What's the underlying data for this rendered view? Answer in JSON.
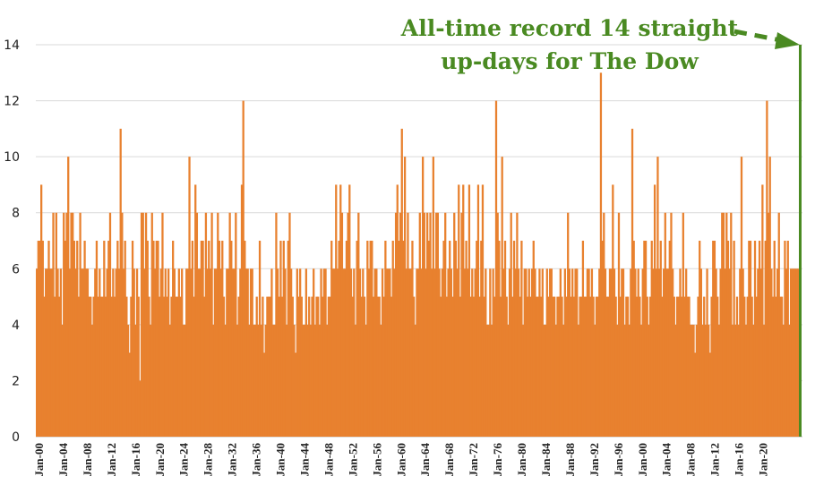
{
  "chart_data": {
    "type": "area",
    "title": "",
    "xlabel": "",
    "ylabel": "",
    "ylim": [
      0,
      14
    ],
    "yticks": [
      0,
      2,
      4,
      6,
      8,
      10,
      12,
      14
    ],
    "grid": true,
    "x_range": [
      "Jan-00",
      "Jan-23"
    ],
    "xtick_labels": [
      "Jan-00",
      "Jan-04",
      "Jan-08",
      "Jan-12",
      "Jan-16",
      "Jan-20",
      "Jan-24",
      "Jan-28",
      "Jan-32",
      "Jan-36",
      "Jan-40",
      "Jan-44",
      "Jan-48",
      "Jan-52",
      "Jan-56",
      "Jan-60",
      "Jan-64",
      "Jan-68",
      "Jan-72",
      "Jan-76",
      "Jan-80",
      "Jan-84",
      "Jan-88",
      "Jan-92",
      "Jan-96",
      "Jan-00",
      "Jan-04",
      "Jan-08",
      "Jan-12",
      "Jan-16",
      "Jan-20"
    ],
    "series": [
      {
        "color": "#e8812f",
        "values": [
          6,
          7,
          7,
          9,
          7,
          5,
          6,
          6,
          7,
          6,
          6,
          8,
          5,
          8,
          6,
          5,
          6,
          4,
          8,
          7,
          8,
          10,
          6,
          8,
          8,
          7,
          6,
          7,
          5,
          8,
          6,
          6,
          7,
          6,
          6,
          5,
          5,
          4,
          5,
          6,
          7,
          5,
          6,
          5,
          5,
          7,
          5,
          6,
          7,
          8,
          5,
          6,
          5,
          6,
          7,
          6,
          11,
          8,
          6,
          7,
          5,
          4,
          3,
          5,
          7,
          6,
          4,
          6,
          5,
          2,
          8,
          8,
          6,
          8,
          7,
          5,
          4,
          8,
          7,
          6,
          7,
          7,
          5,
          6,
          8,
          5,
          6,
          5,
          6,
          4,
          5,
          7,
          6,
          5,
          5,
          6,
          5,
          6,
          4,
          4,
          6,
          6,
          10,
          6,
          7,
          5,
          9,
          8,
          6,
          6,
          7,
          7,
          5,
          8,
          6,
          7,
          6,
          8,
          4,
          6,
          6,
          8,
          7,
          6,
          7,
          5,
          4,
          6,
          6,
          8,
          7,
          6,
          6,
          8,
          4,
          5,
          6,
          9,
          12,
          7,
          6,
          6,
          4,
          6,
          6,
          4,
          4,
          5,
          4,
          7,
          4,
          5,
          3,
          4,
          5,
          5,
          5,
          6,
          4,
          4,
          8,
          6,
          5,
          7,
          5,
          7,
          6,
          4,
          7,
          8,
          6,
          5,
          4,
          3,
          6,
          5,
          6,
          5,
          4,
          4,
          6,
          4,
          5,
          4,
          5,
          6,
          4,
          5,
          5,
          4,
          6,
          5,
          6,
          6,
          4,
          5,
          5,
          7,
          6,
          6,
          9,
          6,
          7,
          9,
          8,
          6,
          6,
          7,
          8,
          9,
          6,
          5,
          6,
          4,
          7,
          8,
          6,
          5,
          6,
          5,
          4,
          7,
          6,
          7,
          7,
          5,
          6,
          6,
          5,
          5,
          4,
          6,
          5,
          7,
          6,
          6,
          6,
          5,
          7,
          6,
          8,
          9,
          7,
          8,
          11,
          7,
          10,
          6,
          8,
          6,
          6,
          7,
          5,
          4,
          6,
          6,
          8,
          6,
          10,
          8,
          6,
          8,
          7,
          8,
          6,
          10,
          6,
          8,
          8,
          6,
          5,
          6,
          7,
          8,
          5,
          6,
          7,
          6,
          5,
          8,
          7,
          6,
          9,
          5,
          8,
          9,
          6,
          7,
          6,
          9,
          5,
          6,
          5,
          6,
          7,
          9,
          5,
          7,
          9,
          5,
          6,
          4,
          4,
          6,
          4,
          6,
          5,
          12,
          8,
          7,
          5,
          10,
          6,
          7,
          5,
          4,
          6,
          8,
          5,
          7,
          6,
          8,
          6,
          5,
          7,
          4,
          6,
          6,
          5,
          6,
          5,
          6,
          7,
          6,
          5,
          5,
          6,
          5,
          6,
          4,
          4,
          6,
          5,
          6,
          6,
          5,
          5,
          4,
          5,
          5,
          6,
          5,
          4,
          6,
          5,
          8,
          6,
          5,
          6,
          5,
          6,
          6,
          4,
          5,
          5,
          7,
          5,
          5,
          6,
          6,
          5,
          6,
          5,
          4,
          5,
          5,
          6,
          13,
          7,
          8,
          6,
          5,
          5,
          6,
          6,
          9,
          6,
          5,
          4,
          8,
          5,
          6,
          6,
          4,
          5,
          5,
          4,
          6,
          11,
          7,
          6,
          5,
          6,
          5,
          4,
          6,
          7,
          7,
          5,
          4,
          5,
          7,
          6,
          9,
          6,
          10,
          6,
          7,
          5,
          6,
          8,
          6,
          6,
          7,
          8,
          6,
          5,
          4,
          5,
          5,
          6,
          5,
          8,
          5,
          6,
          5,
          5,
          4,
          4,
          4,
          3,
          4,
          5,
          7,
          6,
          4,
          5,
          4,
          6,
          4,
          3,
          5,
          7,
          7,
          6,
          5,
          4,
          6,
          8,
          8,
          6,
          8,
          7,
          6,
          8,
          4,
          7,
          4,
          5,
          4,
          6,
          10,
          6,
          5,
          4,
          5,
          7,
          7,
          5,
          4,
          7,
          5,
          6,
          7,
          6,
          9,
          4,
          7,
          12,
          8,
          10,
          6,
          5,
          7,
          5,
          6,
          8,
          5,
          5,
          4,
          7,
          6,
          7,
          4,
          6,
          6,
          6,
          6,
          6,
          6,
          14
        ]
      }
    ],
    "annotations": [
      {
        "lines": [
          "All-time record 14 straight",
          "up-days for The Dow"
        ],
        "target_value": 14,
        "color": "#4a8a22"
      }
    ]
  }
}
